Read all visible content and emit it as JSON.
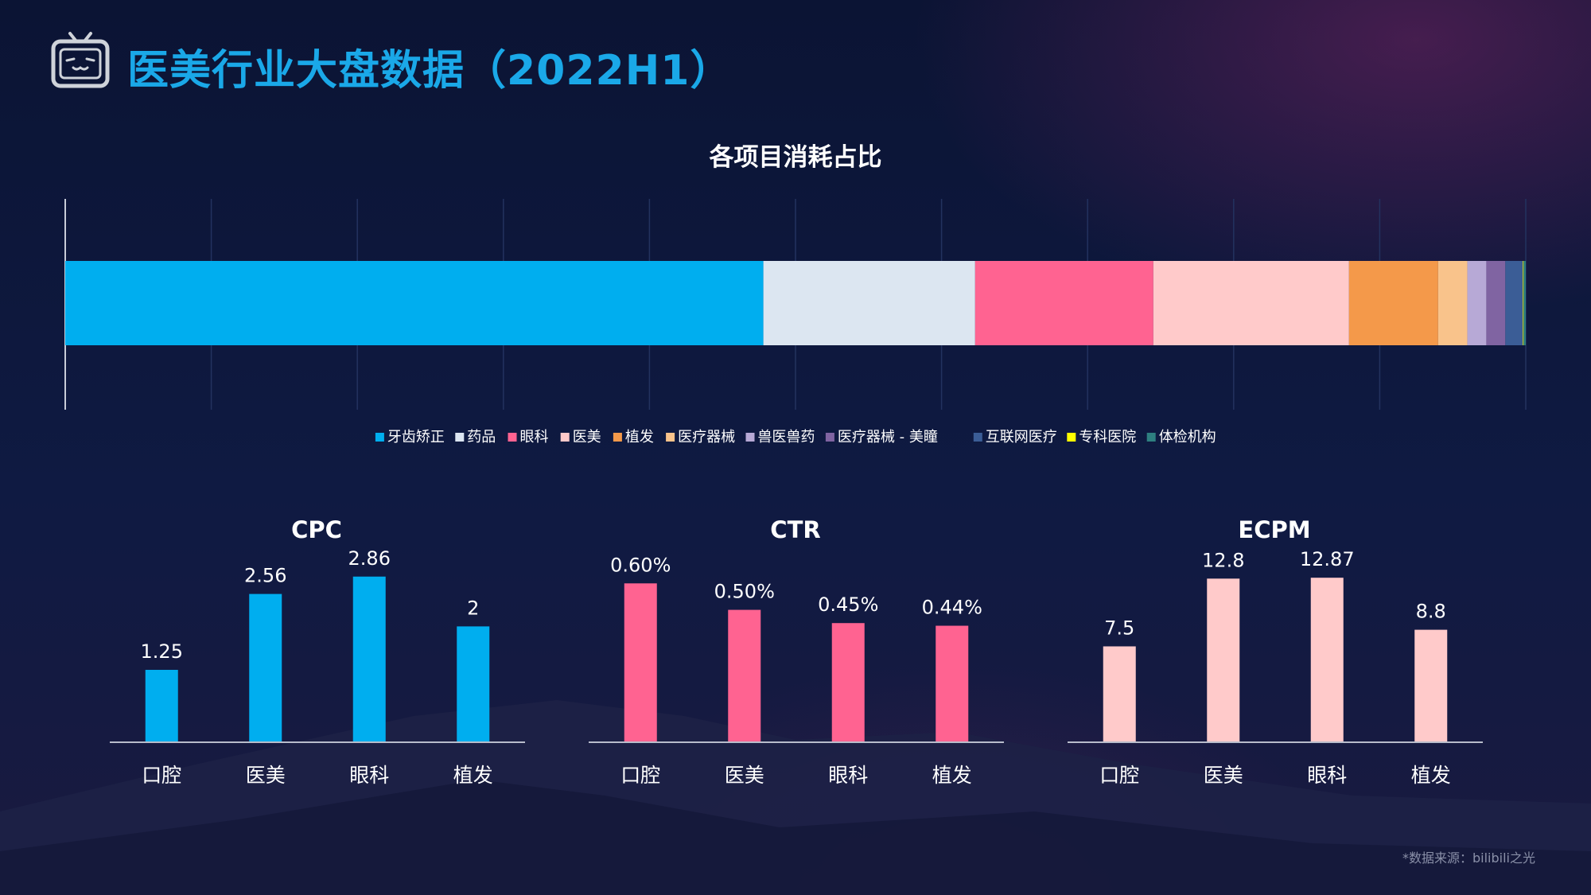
{
  "header": {
    "title": "医美行业大盘数据（2022H1）",
    "logo_icon": "bilibili-tv-icon"
  },
  "footer": {
    "source": "*数据来源：bilibili之光"
  },
  "colors": {
    "title": "#1aa8e8",
    "cpc": "#00aeef",
    "ctr": "#ff6391",
    "ecpm": "#ffcaca"
  },
  "chart_data": [
    {
      "type": "bar",
      "stacked": true,
      "orientation": "horizontal",
      "title": "各项目消耗占比",
      "legend_position": "bottom",
      "grid": true,
      "xlim": [
        0,
        1
      ],
      "series": [
        {
          "name": "牙齿矫正",
          "values": [
            0.478
          ],
          "color": "#00aeef"
        },
        {
          "name": "药品",
          "values": [
            0.145
          ],
          "color": "#dce6f1"
        },
        {
          "name": "眼科",
          "values": [
            0.122
          ],
          "color": "#ff6391"
        },
        {
          "name": "医美",
          "values": [
            0.134
          ],
          "color": "#ffcaca"
        },
        {
          "name": "植发",
          "values": [
            0.061
          ],
          "color": "#f4994a"
        },
        {
          "name": "医疗器械",
          "values": [
            0.02
          ],
          "color": "#f9c38b"
        },
        {
          "name": "兽医兽药",
          "values": [
            0.013
          ],
          "color": "#b7a9d6"
        },
        {
          "name": "医疗器械 - 美瞳",
          "values": [
            0.013
          ],
          "color": "#8064a2"
        },
        {
          "name": "互联网医疗",
          "values": [
            0.012
          ],
          "color": "#3b5d96"
        },
        {
          "name": "专科医院",
          "values": [
            0.0005
          ],
          "color": "#ffff00"
        },
        {
          "name": "体检机构",
          "values": [
            0.0015
          ],
          "color": "#2e7f80"
        }
      ]
    },
    {
      "type": "bar",
      "title": "CPC",
      "categories": [
        "口腔",
        "医美",
        "眼科",
        "植发"
      ],
      "values": [
        1.25,
        2.56,
        2.86,
        2
      ],
      "labels": [
        "1.25",
        "2.56",
        "2.86",
        "2"
      ],
      "ylim": [
        0,
        3.2
      ],
      "color": "#00aeef"
    },
    {
      "type": "bar",
      "title": "CTR",
      "categories": [
        "口腔",
        "医美",
        "眼科",
        "植发"
      ],
      "values": [
        0.6,
        0.5,
        0.45,
        0.44
      ],
      "labels": [
        "0.60%",
        "0.50%",
        "0.45%",
        "0.44%"
      ],
      "ylim": [
        0,
        0.7
      ],
      "color": "#ff6391"
    },
    {
      "type": "bar",
      "title": "ECPM",
      "categories": [
        "口腔",
        "医美",
        "眼科",
        "植发"
      ],
      "values": [
        7.5,
        12.8,
        12.87,
        8.8
      ],
      "labels": [
        "7.5",
        "12.8",
        "12.87",
        "8.8"
      ],
      "ylim": [
        0,
        14.5
      ],
      "color": "#ffcaca"
    }
  ]
}
